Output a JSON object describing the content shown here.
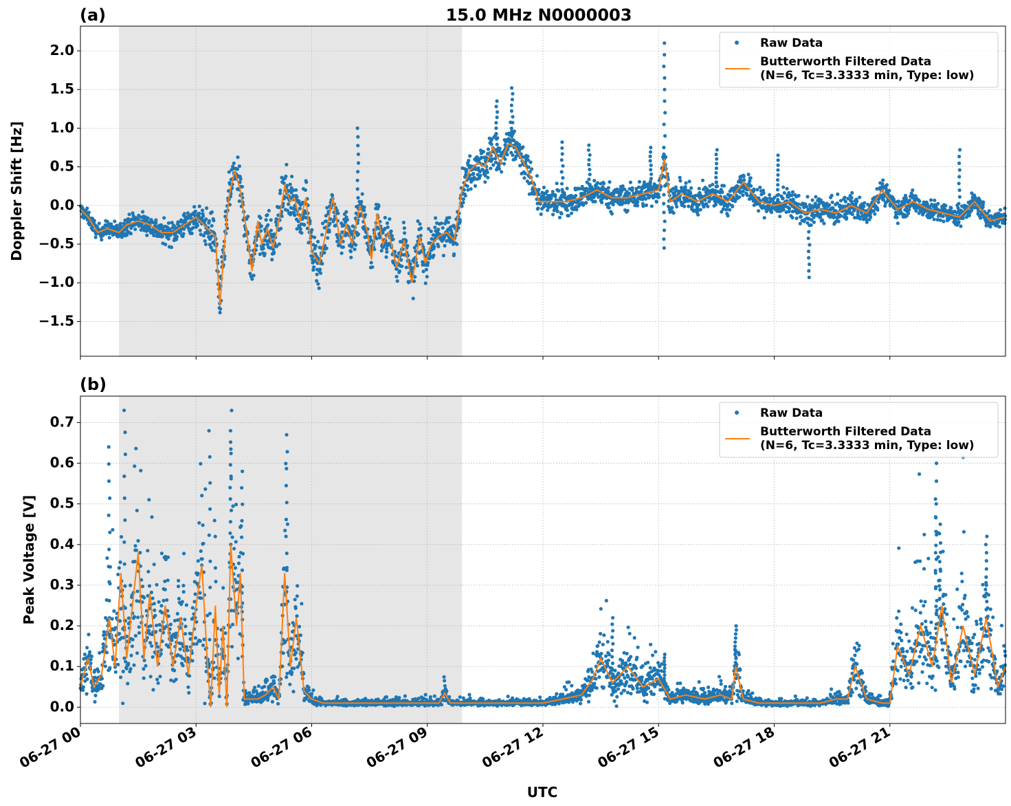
{
  "figure": {
    "title": "15.0 MHz N0000003",
    "xlabel": "UTC"
  },
  "colors": {
    "raw": "#1f77b4",
    "filtered": "#ff7f0e",
    "shade": "#e6e6e6",
    "grid": "#b0b0b0"
  },
  "chart_data": [
    {
      "type": "scatter",
      "panel_label": "(a)",
      "ylabel": "Doppler Shift [Hz]",
      "xlim_hours": [
        0,
        24
      ],
      "ylim": [
        -1.95,
        2.32
      ],
      "yticks": [
        -1.5,
        -1.0,
        -0.5,
        0.0,
        0.5,
        1.0,
        1.5,
        2.0
      ],
      "ytick_labels": [
        "−1.5",
        "−1.0",
        "−0.5",
        "0.0",
        "0.5",
        "1.0",
        "1.5",
        "2.0"
      ],
      "xticks_hours": [
        0,
        3,
        6,
        9,
        12,
        15,
        18,
        21
      ],
      "shaded_interval_hours": [
        1.0,
        9.9
      ],
      "grid": true,
      "legend_position": "top-right",
      "series": [
        {
          "name": "Raw Data",
          "kind": "points",
          "spread_points": [
            [
              0,
              0.15
            ],
            [
              1,
              0.2
            ],
            [
              2,
              0.25
            ],
            [
              3,
              0.3
            ],
            [
              3.5,
              0.5
            ],
            [
              4,
              0.45
            ],
            [
              5,
              0.5
            ],
            [
              6,
              0.5
            ],
            [
              7,
              0.5
            ],
            [
              8,
              0.45
            ],
            [
              9,
              0.4
            ],
            [
              10,
              0.4
            ],
            [
              11,
              0.45
            ],
            [
              12,
              0.3
            ],
            [
              13,
              0.3
            ],
            [
              15,
              0.3
            ],
            [
              18,
              0.3
            ],
            [
              19,
              0.3
            ],
            [
              21,
              0.25
            ],
            [
              24,
              0.2
            ]
          ],
          "spikes": [
            [
              15.15,
              2.1
            ],
            [
              15.15,
              -0.55
            ],
            [
              11.2,
              1.52
            ],
            [
              7.2,
              1.0
            ],
            [
              13.2,
              0.78
            ],
            [
              14.8,
              0.75
            ],
            [
              18.1,
              0.65
            ],
            [
              18.9,
              -0.93
            ],
            [
              22.8,
              0.72
            ],
            [
              10.8,
              1.35
            ],
            [
              12.5,
              0.82
            ],
            [
              16.5,
              0.72
            ]
          ]
        },
        {
          "name": "Butterworth Filtered Data\n(N=6, Tc=3.3333 min, Type: low)",
          "kind": "line",
          "x_hours": [
            0,
            0.2,
            0.45,
            0.7,
            1.0,
            1.2,
            1.5,
            1.8,
            2.1,
            2.4,
            2.7,
            3.0,
            3.3,
            3.5,
            3.62,
            3.72,
            3.85,
            4.0,
            4.15,
            4.3,
            4.45,
            4.6,
            4.7,
            4.85,
            5.0,
            5.15,
            5.3,
            5.45,
            5.55,
            5.7,
            5.85,
            6.0,
            6.2,
            6.35,
            6.55,
            6.75,
            6.9,
            7.05,
            7.25,
            7.45,
            7.55,
            7.7,
            7.85,
            8.0,
            8.2,
            8.4,
            8.6,
            8.8,
            8.95,
            9.1,
            9.3,
            9.5,
            9.7,
            9.9,
            10.1,
            10.3,
            10.5,
            10.7,
            10.9,
            11.1,
            11.3,
            11.5,
            11.7,
            11.9,
            12.2,
            12.6,
            13.0,
            13.4,
            13.8,
            14.2,
            14.6,
            15.0,
            15.15,
            15.3,
            15.6,
            16.0,
            16.4,
            16.8,
            17.2,
            17.6,
            18.0,
            18.4,
            18.8,
            19.2,
            19.6,
            20.0,
            20.4,
            20.8,
            21.2,
            21.6,
            22.0,
            22.4,
            22.8,
            23.2,
            23.6,
            24.0
          ],
          "y_hz": [
            -0.05,
            -0.15,
            -0.35,
            -0.3,
            -0.35,
            -0.25,
            -0.2,
            -0.25,
            -0.35,
            -0.35,
            -0.25,
            -0.15,
            -0.3,
            -0.4,
            -1.3,
            -0.6,
            0.1,
            0.45,
            0.2,
            -0.3,
            -0.85,
            -0.2,
            -0.5,
            -0.3,
            -0.55,
            -0.2,
            0.25,
            0.05,
            0.1,
            -0.2,
            0.1,
            -0.6,
            -0.75,
            -0.4,
            0.1,
            -0.5,
            -0.25,
            -0.5,
            0.0,
            -0.35,
            -0.7,
            -0.1,
            -0.5,
            -0.35,
            -0.8,
            -0.45,
            -1.0,
            -0.4,
            -0.75,
            -0.5,
            -0.4,
            -0.35,
            -0.45,
            0.2,
            0.45,
            0.55,
            0.5,
            0.75,
            0.55,
            0.8,
            0.75,
            0.55,
            0.35,
            0.05,
            0.05,
            0.05,
            0.1,
            0.2,
            0.1,
            0.1,
            0.15,
            0.2,
            0.6,
            0.05,
            0.15,
            0.05,
            0.15,
            0.05,
            0.3,
            0.05,
            0.0,
            0.05,
            -0.1,
            -0.05,
            -0.1,
            0.0,
            -0.1,
            0.2,
            -0.05,
            0.05,
            -0.05,
            -0.1,
            -0.15,
            0.05,
            -0.2,
            -0.15
          ]
        }
      ]
    },
    {
      "type": "scatter",
      "panel_label": "(b)",
      "ylabel": "Peak Voltage [V]",
      "xlim_hours": [
        0,
        24
      ],
      "ylim": [
        -0.04,
        0.765
      ],
      "yticks": [
        0.0,
        0.1,
        0.2,
        0.3,
        0.4,
        0.5,
        0.6,
        0.7
      ],
      "ytick_labels": [
        "0.0",
        "0.1",
        "0.2",
        "0.3",
        "0.4",
        "0.5",
        "0.6",
        "0.7"
      ],
      "xticks_hours": [
        0,
        3,
        6,
        9,
        12,
        15,
        18,
        21
      ],
      "xtick_labels": [
        "06-27 00",
        "06-27 03",
        "06-27 06",
        "06-27 09",
        "06-27 12",
        "06-27 15",
        "06-27 18",
        "06-27 21"
      ],
      "shaded_interval_hours": [
        1.0,
        9.9
      ],
      "grid": true,
      "legend_position": "top-right",
      "series": [
        {
          "name": "Raw Data",
          "kind": "points",
          "spikes": [
            [
              1.15,
              0.73
            ],
            [
              0.75,
              0.64
            ],
            [
              3.35,
              0.68
            ],
            [
              3.9,
              0.68
            ],
            [
              5.35,
              0.67
            ],
            [
              4.2,
              0.58
            ],
            [
              22.2,
              0.6
            ],
            [
              22.2,
              0.5
            ],
            [
              22.3,
              0.45
            ],
            [
              13.8,
              0.22
            ],
            [
              15.15,
              0.13
            ],
            [
              17.0,
              0.2
            ],
            [
              23.5,
              0.42
            ]
          ]
        },
        {
          "name": "Butterworth Filtered Data\n(N=6, Tc=3.3333 min, Type: low)",
          "kind": "line",
          "x_hours": [
            0,
            0.2,
            0.35,
            0.55,
            0.75,
            0.9,
            1.05,
            1.2,
            1.35,
            1.5,
            1.65,
            1.8,
            2.0,
            2.2,
            2.4,
            2.6,
            2.8,
            3.0,
            3.15,
            3.3,
            3.38,
            3.5,
            3.6,
            3.7,
            3.8,
            3.9,
            4.05,
            4.15,
            4.25,
            4.4,
            4.6,
            4.8,
            5.0,
            5.15,
            5.3,
            5.45,
            5.6,
            5.8,
            6.0,
            6.3,
            7.0,
            8.0,
            8.8,
            9.3,
            9.45,
            9.6,
            10.0,
            11.0,
            12.0,
            12.5,
            13.0,
            13.3,
            13.5,
            13.8,
            14.2,
            14.6,
            15.0,
            15.3,
            15.7,
            16.2,
            16.6,
            16.9,
            17.0,
            17.2,
            17.6,
            18.2,
            18.8,
            19.2,
            19.6,
            19.9,
            20.1,
            20.4,
            20.8,
            21.0,
            21.2,
            21.5,
            21.8,
            22.1,
            22.35,
            22.6,
            22.9,
            23.2,
            23.5,
            23.8,
            24.0
          ],
          "y_v": [
            0.05,
            0.12,
            0.05,
            0.08,
            0.22,
            0.1,
            0.33,
            0.12,
            0.25,
            0.38,
            0.12,
            0.28,
            0.1,
            0.25,
            0.1,
            0.22,
            0.08,
            0.25,
            0.35,
            0.1,
            0.0,
            0.25,
            0.03,
            0.2,
            0.0,
            0.4,
            0.2,
            0.33,
            0.02,
            0.02,
            0.02,
            0.03,
            0.05,
            0.02,
            0.33,
            0.1,
            0.22,
            0.04,
            0.02,
            0.01,
            0.01,
            0.01,
            0.01,
            0.01,
            0.035,
            0.01,
            0.01,
            0.01,
            0.01,
            0.02,
            0.03,
            0.07,
            0.12,
            0.06,
            0.1,
            0.05,
            0.07,
            0.02,
            0.03,
            0.02,
            0.03,
            0.02,
            0.1,
            0.02,
            0.01,
            0.01,
            0.01,
            0.01,
            0.02,
            0.02,
            0.1,
            0.02,
            0.01,
            0.01,
            0.15,
            0.08,
            0.2,
            0.1,
            0.25,
            0.06,
            0.2,
            0.08,
            0.22,
            0.05,
            0.1
          ]
        }
      ]
    }
  ]
}
